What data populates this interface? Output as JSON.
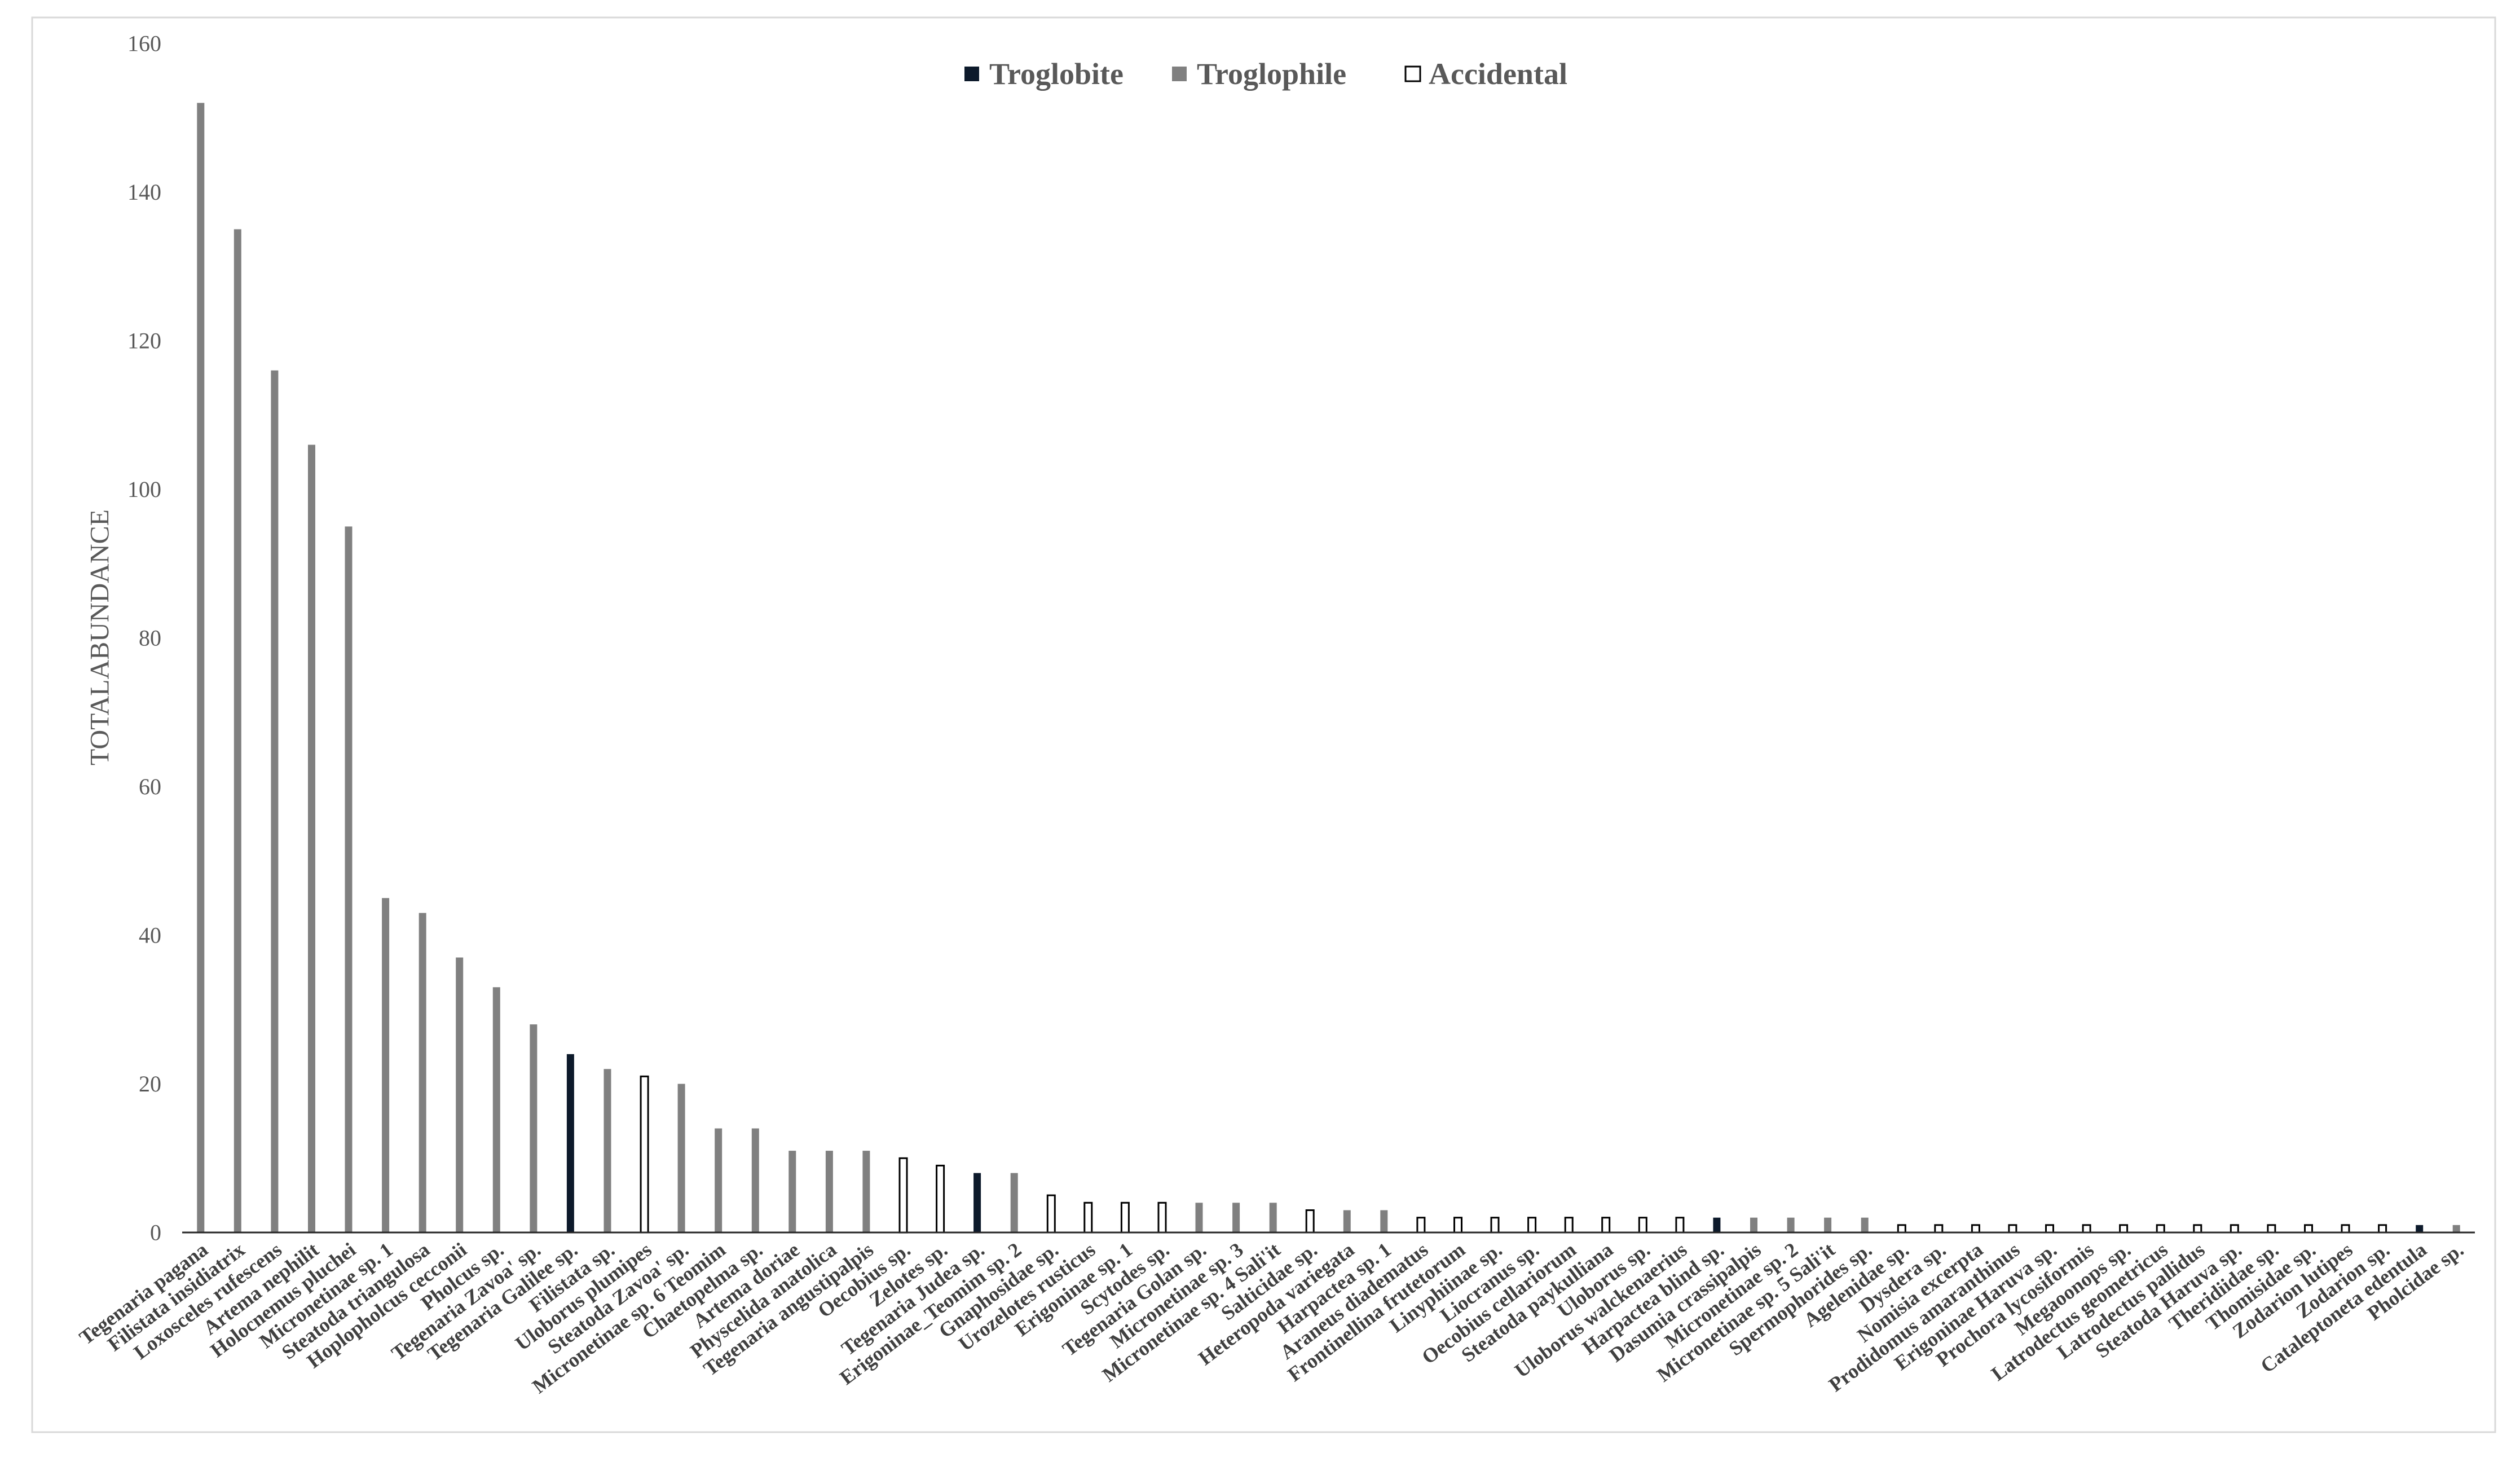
{
  "chart_data": {
    "type": "bar",
    "ylabel": "TOTALABUNDANCE",
    "ylim": [
      0,
      160
    ],
    "yticks": [
      0,
      20,
      40,
      60,
      80,
      100,
      120,
      140,
      160
    ],
    "grid": false,
    "legend_placement": "top-center",
    "series": [
      {
        "name": "Troglobite",
        "color": "#0d1a2b"
      },
      {
        "name": "Troglophile",
        "color": "#808080"
      },
      {
        "name": "Accidental",
        "color": "#ffffff",
        "outline": "#000000"
      }
    ],
    "categories": [
      "Tegenaria pagana",
      "Filistata insidiatrix",
      "Loxosceles rufescens",
      "Artema nephilit",
      "Holocnemus pluchei",
      "Micronetinae sp. 1",
      "Steatoda triangulosa",
      "Hoplopholcus cecconii",
      "Pholcus sp.",
      "Tegenaria Zavoa' sp.",
      "Tegenaria Galilee sp.",
      "Filistata sp.",
      "Uloborus plumipes",
      "Steatoda Zavoa' sp.",
      "Micronetinae sp. 6 Teomim",
      "Chaetopelma sp.",
      "Artema doriae",
      "Physcelida anatolica",
      "Tegenaria angustipalpis",
      "Oecobius sp.",
      "Zelotes sp.",
      "Tegenaria Judea sp.",
      "Erigoninae_Teomim sp. 2",
      "Gnaphosidae sp.",
      "Urozelotes rusticus",
      "Erigoninae sp. 1",
      "Scytodes sp.",
      "Tegenaria Golan sp.",
      "Micronetinae sp. 3",
      "Micronetinae sp. 4 Sali'it",
      "Salticidae sp.",
      "Heteropoda variegata",
      "Harpactea sp. 1",
      "Araneus diadematus",
      "Frontinellina frutetorum",
      "Linyphiinae sp.",
      "Liocranus sp.",
      "Oecobius cellariorum",
      "Steatoda paykulliana",
      "Uloborus sp.",
      "Uloborus walckenaerius",
      "Harpactea blind sp.",
      "Dasumia crassipalpis",
      "Micronetinae sp. 2",
      "Micronetinae sp. 5 Sali'it",
      "Spermophorides sp.",
      "Agelenidae sp.",
      "Dysdera sp.",
      "Nomisia excerpta",
      "Prodidomus amaranthinus",
      "Erigoninae Haruva sp.",
      "Prochora lycosiformis",
      "Megaoonops sp.",
      "Latrodectus geometricus",
      "Latrodectus pallidus",
      "Steatoda Haruva sp.",
      "Theridiidae sp.",
      "Thomisidae sp.",
      "Zodarion lutipes",
      "Zodarion sp.",
      "Cataleptoneta edentula",
      "Pholcidae sp."
    ],
    "values": [
      152,
      135,
      116,
      106,
      95,
      45,
      43,
      37,
      33,
      28,
      24,
      22,
      21,
      20,
      14,
      14,
      11,
      11,
      11,
      10,
      9,
      8,
      8,
      5,
      4,
      4,
      4,
      4,
      4,
      4,
      3,
      3,
      3,
      2,
      2,
      2,
      2,
      2,
      2,
      2,
      2,
      2,
      2,
      2,
      2,
      2,
      1,
      1,
      1,
      1,
      1,
      1,
      1,
      1,
      1,
      1,
      1,
      1,
      1,
      1,
      1,
      1
    ],
    "bar_series": [
      "Troglophile",
      "Troglophile",
      "Troglophile",
      "Troglophile",
      "Troglophile",
      "Troglophile",
      "Troglophile",
      "Troglophile",
      "Troglophile",
      "Troglophile",
      "Troglobite",
      "Troglophile",
      "Accidental",
      "Troglophile",
      "Troglophile",
      "Troglophile",
      "Troglophile",
      "Troglophile",
      "Troglophile",
      "Accidental",
      "Accidental",
      "Troglobite",
      "Troglophile",
      "Accidental",
      "Accidental",
      "Accidental",
      "Accidental",
      "Troglophile",
      "Troglophile",
      "Troglophile",
      "Accidental",
      "Troglophile",
      "Troglophile",
      "Accidental",
      "Accidental",
      "Accidental",
      "Accidental",
      "Accidental",
      "Accidental",
      "Accidental",
      "Accidental",
      "Troglobite",
      "Troglophile",
      "Troglophile",
      "Troglophile",
      "Troglophile",
      "Accidental",
      "Accidental",
      "Accidental",
      "Accidental",
      "Accidental",
      "Accidental",
      "Accidental",
      "Accidental",
      "Accidental",
      "Accidental",
      "Accidental",
      "Accidental",
      "Accidental",
      "Accidental",
      "Troglobite",
      "Troglophile"
    ]
  }
}
